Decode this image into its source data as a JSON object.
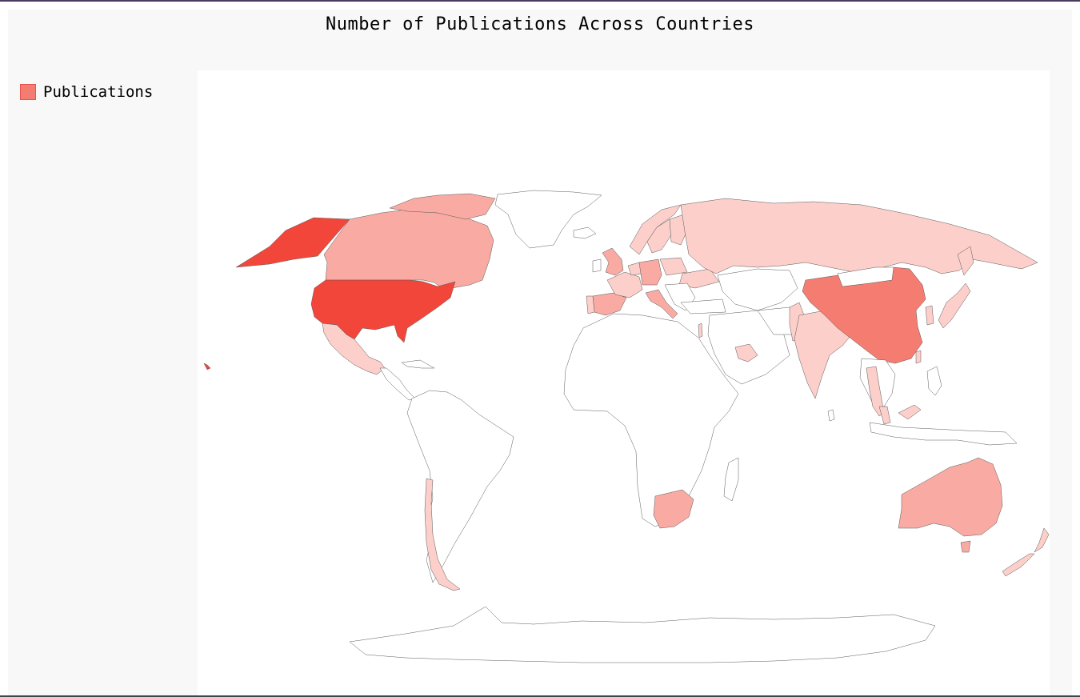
{
  "chart": {
    "title": "Number of Publications Across Countries",
    "legend_label": "Publications"
  },
  "colors": {
    "legend": "#f57c70",
    "frame_bg": "#f8f8f8",
    "plot_bg": "#ffffff",
    "border": "#595959",
    "scale": [
      "#fccfca",
      "#f9aba3",
      "#f57c70",
      "#f3463a"
    ]
  },
  "chart_data": {
    "type": "choropleth",
    "title": "Number of Publications Across Countries",
    "series": [
      {
        "name": "Publications",
        "relative_levels": {
          "United States": 4,
          "China": 3,
          "United Kingdom": 2,
          "Germany": 2,
          "Canada": 2,
          "Australia": 2,
          "South Africa": 2,
          "Spain": 2,
          "Italy": 2,
          "Mexico": 1,
          "Chile": 1,
          "Russia": 1,
          "India": 1,
          "Pakistan": 1,
          "France": 1,
          "Poland": 1,
          "Ukraine": 1,
          "Norway": 1,
          "Sweden": 1,
          "Finland": 1,
          "Japan": 1,
          "South Korea": 1,
          "Malaysia": 1,
          "Thailand": 1,
          "Taiwan": 1,
          "New Zealand": 1,
          "Israel": 1,
          "Saudi Arabia": 1,
          "Netherlands": 1,
          "Belgium": 1,
          "Switzerland": 1,
          "Austria": 1,
          "Czechia": 1,
          "Hungary": 1,
          "Romania": 1,
          "Greece": 1,
          "Portugal": 1
        }
      }
    ]
  }
}
